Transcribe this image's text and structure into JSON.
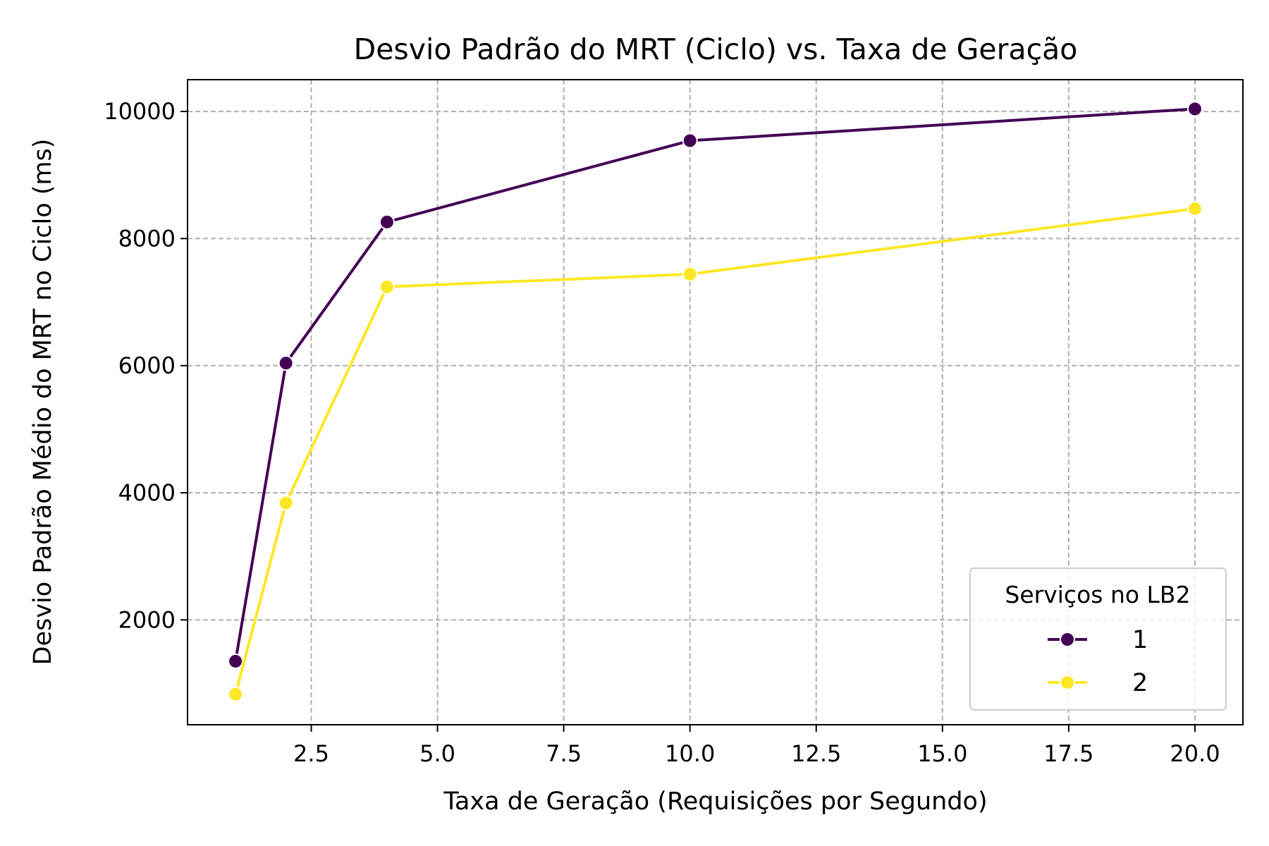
{
  "chart_data": {
    "type": "line",
    "title": "Desvio Padrão do MRT (Ciclo) vs. Taxa de Geração",
    "xlabel": "Taxa de Geração (Requisições por Segundo)",
    "ylabel": "Desvio Padrão Médio do MRT no Ciclo (ms)",
    "xlim": [
      0.05,
      20.95
    ],
    "ylim": [
      350,
      10500
    ],
    "x_ticks": [
      2.5,
      5.0,
      7.5,
      10.0,
      12.5,
      15.0,
      17.5,
      20.0
    ],
    "x_tick_labels": [
      "2.5",
      "5.0",
      "7.5",
      "10.0",
      "12.5",
      "15.0",
      "17.5",
      "20.0"
    ],
    "y_ticks": [
      2000,
      4000,
      6000,
      8000,
      10000
    ],
    "y_tick_labels": [
      "2000",
      "4000",
      "6000",
      "8000",
      "10000"
    ],
    "grid": true,
    "legend": {
      "title": "Serviços no LB2",
      "position": "bottom-right"
    },
    "x": [
      1,
      2,
      4,
      10,
      20
    ],
    "series": [
      {
        "name": "1",
        "color": "#440154",
        "values": [
          1350,
          6040,
          8260,
          9540,
          10040
        ]
      },
      {
        "name": "2",
        "color": "#fde725",
        "values": [
          830,
          3840,
          7240,
          7440,
          8470
        ]
      }
    ]
  }
}
